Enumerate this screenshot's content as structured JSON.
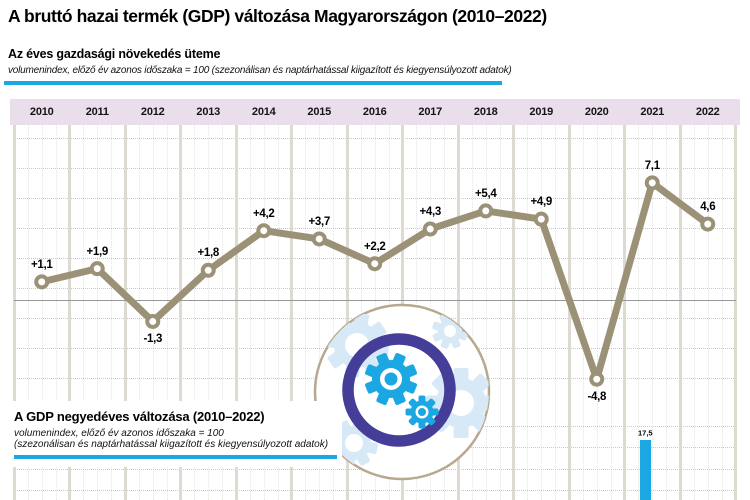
{
  "page": {
    "title": "A bruttó hazai termék (GDP) változása Magyarországon (2010–2022)"
  },
  "colors": {
    "accent_blue": "#1ba7e2",
    "line_olive": "#9b9176",
    "header_band": "#ebdeec",
    "grid_bar": "#dcdad1",
    "zero_line": "#979797",
    "indigo_ring": "#453e99",
    "pale_blue": "#d7e9f7",
    "tan_circle": "#b7a88f",
    "bar_blue": "#1ba7e2"
  },
  "annual_section": {
    "heading": "Az éves gazdasági növekedés üteme",
    "subheading": "volumenindex, előző év azonos időszaka = 100 (szezonálisan és naptárhatással kiigazított és kiegyensúlyozott adatok)"
  },
  "quarterly_section": {
    "heading": "A GDP negyedéves változása (2010–2022)",
    "subheading_line1": "volumenindex, előző év azonos időszaka = 100",
    "subheading_line2": "(szezonálisan és naptárhatással kiigazított és kiegyensúlyozott adatok)"
  },
  "chart_data": [
    {
      "type": "line",
      "title": "Az éves gazdasági növekedés üteme",
      "categories": [
        "2010",
        "2011",
        "2012",
        "2013",
        "2014",
        "2015",
        "2016",
        "2017",
        "2018",
        "2019",
        "2020",
        "2021",
        "2022"
      ],
      "values": [
        1.1,
        1.9,
        -1.3,
        1.8,
        4.2,
        3.7,
        2.2,
        4.3,
        5.4,
        4.9,
        -4.8,
        7.1,
        4.6
      ],
      "point_labels": [
        "+1,1",
        "+1,9",
        "-1,3",
        "+1,8",
        "+4,2",
        "+3,7",
        "+2,2",
        "+4,3",
        "+5,4",
        "+4,9",
        "-4,8",
        "7,1",
        "4,6"
      ],
      "xlabel": "",
      "ylabel": "",
      "grid": true,
      "zero_line": true,
      "legend": "none"
    },
    {
      "type": "bar",
      "title": "A GDP negyedéves változása (2010–2022)",
      "categories": [
        "2010",
        "2011",
        "2012",
        "2013",
        "2014",
        "2015",
        "2016",
        "2017",
        "2018",
        "2019",
        "2020",
        "2021",
        "2022"
      ],
      "bars": [
        {
          "year": "2021",
          "quarter_index": 1,
          "value": 17.5,
          "label": "17,5"
        }
      ],
      "grid": true,
      "legend": "none"
    }
  ]
}
